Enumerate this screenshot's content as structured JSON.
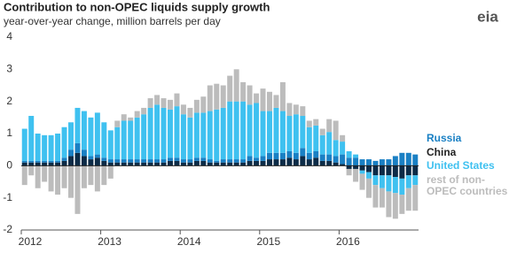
{
  "chart_data": {
    "type": "bar",
    "stacked": true,
    "title": "Contribution to non-OPEC liquids supply growth",
    "subtitle": "year-over-year change, million barrels per day",
    "logo": "eia",
    "categories": [
      "2012",
      null,
      null,
      null,
      null,
      null,
      null,
      null,
      null,
      null,
      null,
      null,
      "2013",
      null,
      null,
      null,
      null,
      null,
      null,
      null,
      null,
      null,
      null,
      null,
      "2014",
      null,
      null,
      null,
      null,
      null,
      null,
      null,
      null,
      null,
      null,
      null,
      "2015",
      null,
      null,
      null,
      null,
      null,
      null,
      null,
      null,
      null,
      null,
      null,
      "2016",
      null,
      null,
      null,
      null,
      null,
      null,
      null,
      null,
      null,
      null,
      null
    ],
    "series": [
      {
        "name": "Russia",
        "color": "#1a80c4",
        "values": [
          0.05,
          0.05,
          0.05,
          0.05,
          0.05,
          0.05,
          0.1,
          0.2,
          0.3,
          0.2,
          0.1,
          0.1,
          0.1,
          0.1,
          0.1,
          0.1,
          0.1,
          0.1,
          0.1,
          0.1,
          0.1,
          0.1,
          0.1,
          0.1,
          0.1,
          0.1,
          0.1,
          0.1,
          0.1,
          0.05,
          0.1,
          0.1,
          0.1,
          0.1,
          0.15,
          0.1,
          0.15,
          0.2,
          0.2,
          0.2,
          0.2,
          0.2,
          0.25,
          0.2,
          0.2,
          0.2,
          0.2,
          0.2,
          0.3,
          0.25,
          0.25,
          0.2,
          0.2,
          0.15,
          0.2,
          0.2,
          0.3,
          0.4,
          0.4,
          0.35
        ]
      },
      {
        "name": "China",
        "color": "#0c2b47",
        "values": [
          0.1,
          0.1,
          0.1,
          0.1,
          0.1,
          0.1,
          0.15,
          0.3,
          0.4,
          0.3,
          0.2,
          0.25,
          0.15,
          0.1,
          0.1,
          0.1,
          0.1,
          0.1,
          0.1,
          0.1,
          0.1,
          0.1,
          0.15,
          0.15,
          0.1,
          0.1,
          0.15,
          0.15,
          0.1,
          0.1,
          0.1,
          0.1,
          0.1,
          0.1,
          0.15,
          0.15,
          0.15,
          0.2,
          0.2,
          0.2,
          0.25,
          0.2,
          0.3,
          0.2,
          0.25,
          0.15,
          0.15,
          0.1,
          0.05,
          -0.1,
          -0.1,
          -0.15,
          -0.2,
          -0.3,
          -0.3,
          -0.3,
          -0.35,
          -0.4,
          -0.3,
          -0.3
        ]
      },
      {
        "name": "United States",
        "color": "#3fc1f0",
        "values": [
          1.0,
          1.4,
          0.85,
          0.8,
          0.8,
          0.85,
          0.95,
          0.85,
          1.1,
          1.2,
          1.2,
          1.3,
          1.1,
          0.9,
          1.0,
          1.2,
          1.2,
          1.3,
          1.4,
          1.6,
          1.7,
          1.6,
          1.5,
          1.6,
          1.4,
          1.3,
          1.4,
          1.4,
          1.5,
          1.6,
          1.6,
          1.8,
          1.8,
          1.8,
          1.6,
          1.7,
          1.4,
          1.3,
          1.4,
          1.3,
          1.1,
          1.2,
          1.0,
          0.8,
          0.8,
          0.6,
          0.7,
          0.5,
          0.4,
          0.2,
          0.1,
          -0.1,
          -0.2,
          -0.3,
          -0.4,
          -0.5,
          -0.5,
          -0.5,
          -0.4,
          -0.3
        ]
      },
      {
        "name": "rest of non-OPEC countries",
        "color": "#bcbcbc",
        "values": [
          -0.6,
          -0.3,
          -0.7,
          -0.5,
          -0.8,
          -0.9,
          -0.7,
          -1.0,
          -1.5,
          -0.7,
          -0.6,
          -0.8,
          -0.6,
          -0.4,
          0.2,
          0.2,
          0.1,
          0.2,
          0.2,
          0.3,
          0.3,
          0.3,
          0.3,
          0.4,
          0.3,
          0.3,
          0.4,
          0.5,
          0.8,
          0.8,
          0.7,
          0.8,
          1.0,
          0.6,
          0.6,
          0.3,
          0.7,
          0.6,
          0.4,
          0.9,
          0.4,
          0.3,
          0.3,
          0.2,
          0.2,
          0.2,
          0.4,
          0.6,
          0.2,
          -0.2,
          -0.4,
          -0.5,
          -0.6,
          -0.7,
          -0.6,
          -0.8,
          -0.8,
          -0.6,
          -0.7,
          -0.8
        ]
      }
    ],
    "ylim": [
      -2,
      4
    ],
    "yticks": [
      -2,
      -1,
      0,
      1,
      2,
      3,
      4
    ],
    "grid": false
  }
}
